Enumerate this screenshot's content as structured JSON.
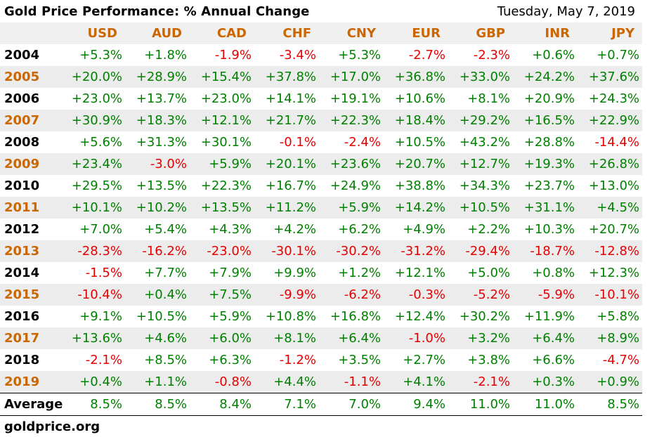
{
  "title": "Gold Price Performance: % Annual Change",
  "date": "Tuesday, May 7, 2019",
  "source": "goldprice.org",
  "colors": {
    "header_text": "#cc6600",
    "year_odd": "#000000",
    "year_even": "#cc6600",
    "positive": "#008000",
    "negative": "#e60000",
    "row_alt_bg": "#ececec",
    "header_bg": "#f0f0f0"
  },
  "chart_data": {
    "type": "table",
    "columns": [
      "USD",
      "AUD",
      "CAD",
      "CHF",
      "CNY",
      "EUR",
      "GBP",
      "INR",
      "JPY"
    ],
    "rows": [
      {
        "year": "2004",
        "values": [
          "+5.3%",
          "+1.8%",
          "-1.9%",
          "-3.4%",
          "+5.3%",
          "-2.7%",
          "-2.3%",
          "+0.6%",
          "+0.7%"
        ]
      },
      {
        "year": "2005",
        "values": [
          "+20.0%",
          "+28.9%",
          "+15.4%",
          "+37.8%",
          "+17.0%",
          "+36.8%",
          "+33.0%",
          "+24.2%",
          "+37.6%"
        ]
      },
      {
        "year": "2006",
        "values": [
          "+23.0%",
          "+13.7%",
          "+23.0%",
          "+14.1%",
          "+19.1%",
          "+10.6%",
          "+8.1%",
          "+20.9%",
          "+24.3%"
        ]
      },
      {
        "year": "2007",
        "values": [
          "+30.9%",
          "+18.3%",
          "+12.1%",
          "+21.7%",
          "+22.3%",
          "+18.4%",
          "+29.2%",
          "+16.5%",
          "+22.9%"
        ]
      },
      {
        "year": "2008",
        "values": [
          "+5.6%",
          "+31.3%",
          "+30.1%",
          "-0.1%",
          "-2.4%",
          "+10.5%",
          "+43.2%",
          "+28.8%",
          "-14.4%"
        ]
      },
      {
        "year": "2009",
        "values": [
          "+23.4%",
          "-3.0%",
          "+5.9%",
          "+20.1%",
          "+23.6%",
          "+20.7%",
          "+12.7%",
          "+19.3%",
          "+26.8%"
        ]
      },
      {
        "year": "2010",
        "values": [
          "+29.5%",
          "+13.5%",
          "+22.3%",
          "+16.7%",
          "+24.9%",
          "+38.8%",
          "+34.3%",
          "+23.7%",
          "+13.0%"
        ]
      },
      {
        "year": "2011",
        "values": [
          "+10.1%",
          "+10.2%",
          "+13.5%",
          "+11.2%",
          "+5.9%",
          "+14.2%",
          "+10.5%",
          "+31.1%",
          "+4.5%"
        ]
      },
      {
        "year": "2012",
        "values": [
          "+7.0%",
          "+5.4%",
          "+4.3%",
          "+4.2%",
          "+6.2%",
          "+4.9%",
          "+2.2%",
          "+10.3%",
          "+20.7%"
        ]
      },
      {
        "year": "2013",
        "values": [
          "-28.3%",
          "-16.2%",
          "-23.0%",
          "-30.1%",
          "-30.2%",
          "-31.2%",
          "-29.4%",
          "-18.7%",
          "-12.8%"
        ]
      },
      {
        "year": "2014",
        "values": [
          "-1.5%",
          "+7.7%",
          "+7.9%",
          "+9.9%",
          "+1.2%",
          "+12.1%",
          "+5.0%",
          "+0.8%",
          "+12.3%"
        ]
      },
      {
        "year": "2015",
        "values": [
          "-10.4%",
          "+0.4%",
          "+7.5%",
          "-9.9%",
          "-6.2%",
          "-0.3%",
          "-5.2%",
          "-5.9%",
          "-10.1%"
        ]
      },
      {
        "year": "2016",
        "values": [
          "+9.1%",
          "+10.5%",
          "+5.9%",
          "+10.8%",
          "+16.8%",
          "+12.4%",
          "+30.2%",
          "+11.9%",
          "+5.8%"
        ]
      },
      {
        "year": "2017",
        "values": [
          "+13.6%",
          "+4.6%",
          "+6.0%",
          "+8.1%",
          "+6.4%",
          "-1.0%",
          "+3.2%",
          "+6.4%",
          "+8.9%"
        ]
      },
      {
        "year": "2018",
        "values": [
          "-2.1%",
          "+8.5%",
          "+6.3%",
          "-1.2%",
          "+3.5%",
          "+2.7%",
          "+3.8%",
          "+6.6%",
          "-4.7%"
        ]
      },
      {
        "year": "2019",
        "values": [
          "+0.4%",
          "+1.1%",
          "-0.8%",
          "+4.4%",
          "-1.1%",
          "+4.1%",
          "-2.1%",
          "+0.3%",
          "+0.9%"
        ]
      }
    ],
    "average": {
      "label": "Average",
      "values": [
        "8.5%",
        "8.5%",
        "8.4%",
        "7.1%",
        "7.0%",
        "9.4%",
        "11.0%",
        "11.0%",
        "8.5%"
      ]
    }
  }
}
